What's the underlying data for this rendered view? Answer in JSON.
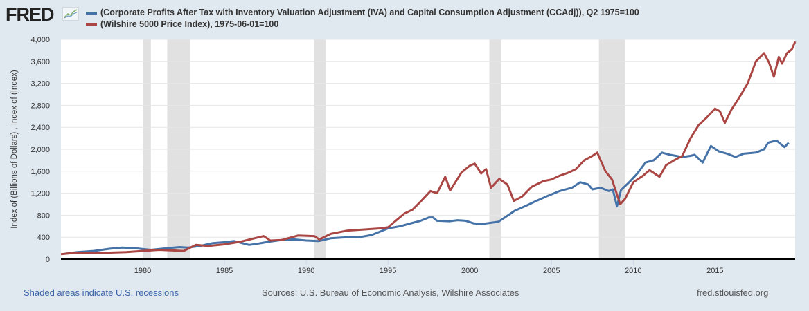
{
  "header": {
    "logo_text": "FRED",
    "logo_icon": "chart-line-icon"
  },
  "footer": {
    "recession_note": "Shaded areas indicate U.S. recessions",
    "sources": "Sources: U.S. Bureau of Economic Analysis, Wilshire Associates",
    "site": "fred.stlouisfed.org"
  },
  "colors": {
    "series1": "#4572a7",
    "series2": "#aa4643",
    "recession": "#e1e1e1",
    "grid": "#e6e6e6",
    "background": "#e1e9f0"
  },
  "chart_data": {
    "type": "line",
    "title": "",
    "xlabel": "",
    "ylabel": "Index of (Billions of Dollars) , Index of (Index)",
    "xlim": [
      1975.0,
      2019.9
    ],
    "ylim": [
      0,
      4000
    ],
    "grid": true,
    "legend_position": "top",
    "x_ticks": [
      1980,
      1985,
      1990,
      1995,
      2000,
      2005,
      2010,
      2015
    ],
    "y_ticks": [
      0,
      400,
      800,
      1200,
      1600,
      2000,
      2400,
      2800,
      3200,
      3600,
      4000
    ],
    "y_tick_labels": [
      "0",
      "400",
      "800",
      "1,200",
      "1,600",
      "2,000",
      "2,400",
      "2,800",
      "3,200",
      "3,600",
      "4,000"
    ],
    "recessions": [
      [
        1980.0,
        1980.5
      ],
      [
        1981.5,
        1982.9
      ],
      [
        1990.5,
        1991.2
      ],
      [
        2001.2,
        2001.9
      ],
      [
        2007.9,
        2009.5
      ]
    ],
    "series": [
      {
        "name": "(Corporate Profits After Tax with Inventory Valuation Adjustment (IVA) and Capital Consumption Adjustment (CCAdj)), Q2 1975=100",
        "color": "#4572a7",
        "x": [
          1975.25,
          1976,
          1977,
          1978,
          1978.75,
          1979.5,
          1980.5,
          1981.5,
          1982.25,
          1982.75,
          1983.5,
          1984.25,
          1985,
          1985.6,
          1986.5,
          1987,
          1987.75,
          1988.5,
          1989.25,
          1990,
          1990.75,
          1991.5,
          1992.5,
          1993.25,
          1994,
          1995,
          1995.75,
          1996.5,
          1997,
          1997.5,
          1997.75,
          1998,
          1998.75,
          1999.25,
          1999.75,
          2000.25,
          2000.75,
          2001.25,
          2001.75,
          2002.25,
          2002.75,
          2003.5,
          2004,
          2004.75,
          2005.5,
          2006.25,
          2006.75,
          2007.25,
          2007.5,
          2008,
          2008.5,
          2008.75,
          2009,
          2009.25,
          2009.75,
          2010.25,
          2010.75,
          2011.25,
          2011.75,
          2012.25,
          2013,
          2013.5,
          2013.75,
          2014.25,
          2014.75,
          2015.25,
          2015.75,
          2016.25,
          2016.75,
          2017.5,
          2018,
          2018.25,
          2018.75,
          2019.25,
          2019.5
        ],
        "y": [
          100,
          130,
          150,
          190,
          210,
          200,
          170,
          200,
          220,
          210,
          240,
          290,
          310,
          330,
          260,
          280,
          320,
          350,
          360,
          340,
          330,
          380,
          400,
          400,
          440,
          560,
          600,
          660,
          700,
          760,
          760,
          700,
          690,
          710,
          700,
          650,
          640,
          660,
          680,
          780,
          880,
          980,
          1050,
          1150,
          1240,
          1300,
          1400,
          1360,
          1270,
          1300,
          1240,
          1270,
          960,
          1260,
          1400,
          1560,
          1760,
          1800,
          1940,
          1900,
          1860,
          1880,
          1900,
          1760,
          2060,
          1960,
          1920,
          1860,
          1920,
          1940,
          2000,
          2120,
          2160,
          2040,
          2120
        ]
      },
      {
        "name": "(Wilshire 5000 Price Index), 1975-06-01=100",
        "color": "#aa4643",
        "x": [
          1975.0,
          1976,
          1977,
          1978,
          1979,
          1980,
          1981,
          1982.5,
          1983.25,
          1984,
          1985,
          1986,
          1987.4,
          1987.8,
          1988.5,
          1989.5,
          1990.5,
          1990.8,
          1991.5,
          1992.5,
          1993.5,
          1994.5,
          1995,
          1996,
          1996.5,
          1997,
          1997.6,
          1998,
          1998.5,
          1998.8,
          1999.5,
          2000,
          2000.3,
          2000.7,
          2001,
          2001.3,
          2001.8,
          2002.3,
          2002.7,
          2003.2,
          2003.8,
          2004.5,
          2005,
          2005.5,
          2006,
          2006.5,
          2007,
          2007.5,
          2007.8,
          2008.3,
          2008.7,
          2009.2,
          2009.5,
          2010,
          2010.3,
          2010.6,
          2011,
          2011.6,
          2012,
          2012.5,
          2013,
          2013.5,
          2014,
          2014.5,
          2015,
          2015.3,
          2015.6,
          2016,
          2016.5,
          2017,
          2017.5,
          2018,
          2018.3,
          2018.6,
          2018.9,
          2019.1,
          2019.4,
          2019.7,
          2019.9
        ],
        "y": [
          90,
          120,
          110,
          120,
          130,
          150,
          170,
          150,
          260,
          240,
          270,
          320,
          420,
          340,
          350,
          430,
          420,
          360,
          460,
          520,
          540,
          560,
          580,
          830,
          900,
          1050,
          1240,
          1200,
          1500,
          1250,
          1580,
          1700,
          1740,
          1560,
          1640,
          1300,
          1460,
          1360,
          1060,
          1140,
          1320,
          1420,
          1450,
          1520,
          1570,
          1640,
          1800,
          1880,
          1940,
          1600,
          1450,
          1000,
          1100,
          1400,
          1460,
          1520,
          1620,
          1500,
          1710,
          1800,
          1880,
          2200,
          2440,
          2580,
          2740,
          2690,
          2480,
          2720,
          2950,
          3200,
          3600,
          3750,
          3580,
          3320,
          3680,
          3560,
          3750,
          3820,
          3960
        ]
      }
    ]
  }
}
